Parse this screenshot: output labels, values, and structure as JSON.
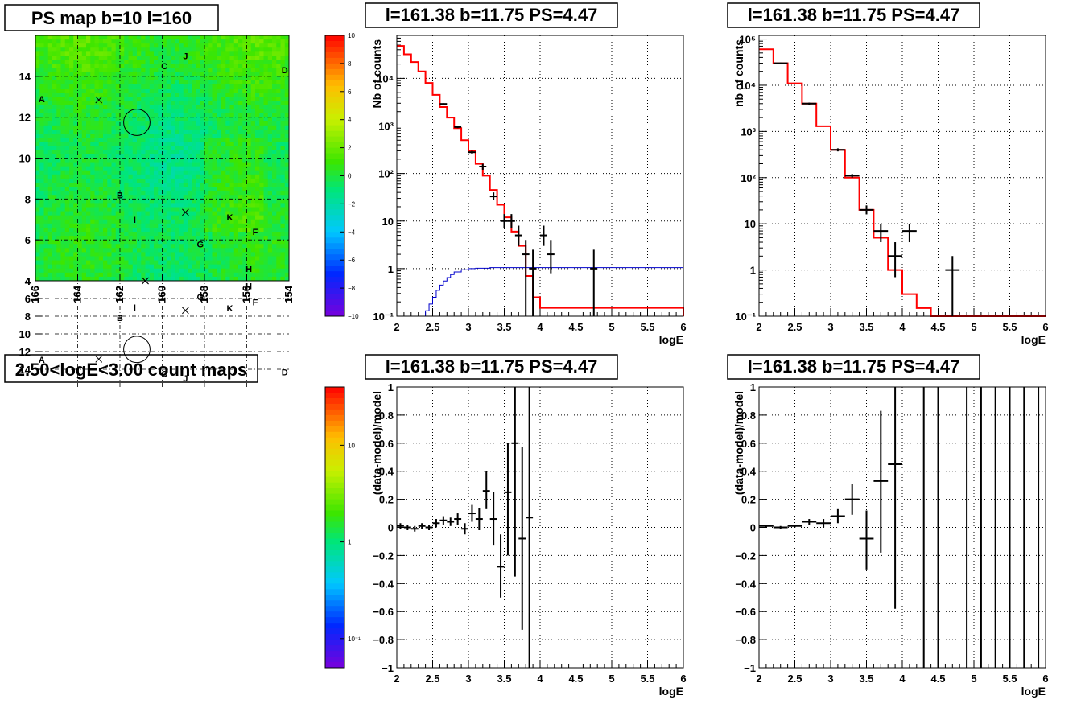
{
  "chart_data": [
    {
      "id": "psmap",
      "type": "heatmap",
      "title": "PS map b=10 l=160",
      "xlim": [
        166,
        154
      ],
      "ylim": [
        4,
        16
      ],
      "xticks": [
        "166",
        "164",
        "162",
        "160",
        "158",
        "156",
        "154"
      ],
      "yticks": [
        "4",
        "6",
        "8",
        "10",
        "12",
        "14"
      ],
      "grid": true,
      "colorbar": {
        "scale": "linear",
        "min": -10,
        "max": 10,
        "ticks": [
          "10",
          "8",
          "6",
          "4",
          "2",
          "0",
          "−2",
          "−4",
          "−6",
          "−8",
          "−10"
        ]
      },
      "dominant_value_range": [
        -2,
        3
      ],
      "sources": [
        {
          "name": "A",
          "x": 165.7,
          "y": 12.9
        },
        {
          "name": "B",
          "x": 162.0,
          "y": 8.2
        },
        {
          "name": "C",
          "x": 159.9,
          "y": 14.5
        },
        {
          "name": "D",
          "x": 154.2,
          "y": 14.3
        },
        {
          "name": "F",
          "x": 155.6,
          "y": 6.4
        },
        {
          "name": "G",
          "x": 158.2,
          "y": 5.8
        },
        {
          "name": "H",
          "x": 155.9,
          "y": 4.6
        },
        {
          "name": "I",
          "x": 161.3,
          "y": 7.0
        },
        {
          "name": "J",
          "x": 158.9,
          "y": 15.0
        },
        {
          "name": "K",
          "x": 156.8,
          "y": 7.1
        }
      ],
      "crosses": [
        {
          "x": 163.0,
          "y": 12.85
        },
        {
          "x": 158.9,
          "y": 7.35
        },
        {
          "x": 160.8,
          "y": 4.0
        }
      ],
      "circle": {
        "x": 161.2,
        "y": 11.75,
        "r": 0.5
      }
    },
    {
      "id": "countmap",
      "type": "heatmap",
      "title": "2.50<logE<3.00 count maps",
      "xlim": [
        166,
        154
      ],
      "ylim": [
        4,
        16
      ],
      "xticks": [
        "166",
        "164",
        "162",
        "160",
        "158",
        "156",
        "154"
      ],
      "yticks": [
        "4",
        "6",
        "8",
        "10",
        "12",
        "14"
      ],
      "grid": true,
      "colorbar": {
        "scale": "log",
        "min": 0.05,
        "max": 40,
        "ticks": [
          "10",
          "1",
          "10⁻¹"
        ]
      },
      "sources": [
        {
          "name": "A",
          "x": 165.7,
          "y": 12.9
        },
        {
          "name": "B",
          "x": 162.0,
          "y": 8.2
        },
        {
          "name": "C",
          "x": 159.9,
          "y": 14.5
        },
        {
          "name": "D",
          "x": 154.2,
          "y": 14.3
        },
        {
          "name": "F",
          "x": 155.6,
          "y": 6.4
        },
        {
          "name": "G",
          "x": 158.2,
          "y": 5.8
        },
        {
          "name": "H",
          "x": 155.9,
          "y": 4.6
        },
        {
          "name": "I",
          "x": 161.3,
          "y": 7.0
        },
        {
          "name": "J",
          "x": 158.9,
          "y": 15.0
        },
        {
          "name": "K",
          "x": 156.8,
          "y": 7.1
        }
      ],
      "crosses": [
        {
          "x": 163.0,
          "y": 12.85
        },
        {
          "x": 158.9,
          "y": 7.35
        },
        {
          "x": 160.8,
          "y": 4.0
        }
      ],
      "circle": {
        "x": 161.2,
        "y": 11.75,
        "r": 0.5
      }
    },
    {
      "id": "spec1",
      "type": "line",
      "title": "l=161.38 b=11.75 PS=4.47",
      "xlabel": "logE",
      "ylabel": "Nb of counts",
      "xlim": [
        2,
        6
      ],
      "ylim": [
        0.1,
        80000
      ],
      "yscale": "log",
      "grid": true,
      "xticks": [
        "2",
        "2.5",
        "3",
        "3.5",
        "4",
        "4.5",
        "5",
        "5.5",
        "6"
      ],
      "yticks": [
        {
          "v": 0.1,
          "t": "10⁻¹"
        },
        {
          "v": 1,
          "t": "1"
        },
        {
          "v": 10,
          "t": "10"
        },
        {
          "v": 100,
          "t": "10²"
        },
        {
          "v": 1000,
          "t": "10³"
        },
        {
          "v": 10000,
          "t": "10⁴"
        }
      ],
      "series": [
        {
          "kind": "step",
          "color": "#ff0000",
          "edges": [
            2.0,
            2.1,
            2.2,
            2.3,
            2.4,
            2.5,
            2.6,
            2.7,
            2.8,
            2.9,
            3.0,
            3.1,
            3.2,
            3.3,
            3.4,
            3.5,
            3.6,
            3.7,
            3.8,
            3.9,
            4.0,
            6.0
          ],
          "values": [
            48000,
            32000,
            22000,
            14000,
            8000,
            4500,
            2500,
            1500,
            900,
            500,
            300,
            160,
            90,
            45,
            22,
            12,
            6,
            3,
            0.7,
            0.25,
            0.15,
            0.1
          ]
        },
        {
          "kind": "step",
          "color": "#0000cc",
          "edges": [
            2.0,
            2.4,
            2.45,
            2.5,
            2.55,
            2.6,
            2.65,
            2.7,
            2.75,
            2.8,
            2.9,
            3.0,
            3.1,
            3.3,
            3.6,
            6.0
          ],
          "values": [
            0.1,
            0.13,
            0.18,
            0.25,
            0.35,
            0.45,
            0.55,
            0.65,
            0.75,
            0.85,
            0.95,
            1.0,
            1.02,
            1.05,
            1.05,
            1.05
          ]
        },
        {
          "kind": "errorbars",
          "color": "#000000",
          "points": [
            {
              "x": 2.65,
              "y": 2900,
              "lo": 2800,
              "hi": 3000,
              "xe": 0.05
            },
            {
              "x": 2.85,
              "y": 950,
              "lo": 900,
              "hi": 1000,
              "xe": 0.05
            },
            {
              "x": 3.05,
              "y": 280,
              "lo": 260,
              "hi": 300,
              "xe": 0.05
            },
            {
              "x": 3.2,
              "y": 140,
              "lo": 120,
              "hi": 160,
              "xe": 0.05
            },
            {
              "x": 3.35,
              "y": 33,
              "lo": 28,
              "hi": 40,
              "xe": 0.05
            },
            {
              "x": 3.5,
              "y": 10,
              "lo": 7,
              "hi": 14,
              "xe": 0.05
            },
            {
              "x": 3.6,
              "y": 10,
              "lo": 7,
              "hi": 14,
              "xe": 0.05
            },
            {
              "x": 3.7,
              "y": 5,
              "lo": 3,
              "hi": 8,
              "xe": 0.05
            },
            {
              "x": 3.8,
              "y": 2,
              "lo": 0.1,
              "hi": 4,
              "xe": 0.05
            },
            {
              "x": 3.9,
              "y": 1,
              "lo": 0.1,
              "hi": 2.5,
              "xe": 0.05
            },
            {
              "x": 4.05,
              "y": 5,
              "lo": 3,
              "hi": 8,
              "xe": 0.05
            },
            {
              "x": 4.15,
              "y": 2,
              "lo": 0.8,
              "hi": 4,
              "xe": 0.05
            },
            {
              "x": 4.75,
              "y": 1,
              "lo": 0.1,
              "hi": 2.5,
              "xe": 0.05
            }
          ]
        }
      ]
    },
    {
      "id": "spec2",
      "type": "line",
      "title": "l=161.38 b=11.75 PS=4.47",
      "xlabel": "logE",
      "ylabel": "nb of counts",
      "xlim": [
        2,
        6
      ],
      "ylim": [
        0.1,
        120000
      ],
      "yscale": "log",
      "grid": true,
      "xticks": [
        "2",
        "2.5",
        "3",
        "3.5",
        "4",
        "4.5",
        "5",
        "5.5",
        "6"
      ],
      "yticks": [
        {
          "v": 0.1,
          "t": "10⁻¹"
        },
        {
          "v": 1,
          "t": "1"
        },
        {
          "v": 10,
          "t": "10"
        },
        {
          "v": 100,
          "t": "10²"
        },
        {
          "v": 1000,
          "t": "10³"
        },
        {
          "v": 10000,
          "t": "10⁴"
        },
        {
          "v": 100000,
          "t": "10⁵"
        }
      ],
      "series": [
        {
          "kind": "step",
          "color": "#ff0000",
          "edges": [
            2.0,
            2.2,
            2.4,
            2.6,
            2.8,
            3.0,
            3.2,
            3.4,
            3.6,
            3.8,
            4.0,
            4.2,
            4.4,
            6.0
          ],
          "values": [
            60000,
            30000,
            11000,
            4000,
            1300,
            400,
            100,
            20,
            5,
            1,
            0.3,
            0.15,
            0.1,
            0.1
          ]
        },
        {
          "kind": "errorbars",
          "color": "#000000",
          "points": [
            {
              "x": 2.3,
              "y": 30000,
              "lo": 29000,
              "hi": 31000,
              "xe": 0.1
            },
            {
              "x": 2.7,
              "y": 4000,
              "lo": 3800,
              "hi": 4200,
              "xe": 0.1
            },
            {
              "x": 3.1,
              "y": 400,
              "lo": 370,
              "hi": 430,
              "xe": 0.1
            },
            {
              "x": 3.3,
              "y": 110,
              "lo": 100,
              "hi": 120,
              "xe": 0.1
            },
            {
              "x": 3.5,
              "y": 20,
              "lo": 16,
              "hi": 25,
              "xe": 0.1
            },
            {
              "x": 3.7,
              "y": 7,
              "lo": 4,
              "hi": 10,
              "xe": 0.1
            },
            {
              "x": 3.9,
              "y": 2,
              "lo": 0.7,
              "hi": 4,
              "xe": 0.1
            },
            {
              "x": 4.1,
              "y": 7,
              "lo": 4,
              "hi": 10,
              "xe": 0.1
            },
            {
              "x": 4.7,
              "y": 1,
              "lo": 0.1,
              "hi": 2,
              "xe": 0.1
            }
          ]
        }
      ]
    },
    {
      "id": "res1",
      "type": "scatter",
      "title": "l=161.38 b=11.75 PS=4.47",
      "xlabel": "logE",
      "ylabel": "(data-model)/model",
      "xlim": [
        2,
        6
      ],
      "ylim": [
        -1,
        1
      ],
      "grid": true,
      "xticks": [
        "2",
        "2.5",
        "3",
        "3.5",
        "4",
        "4.5",
        "5",
        "5.5",
        "6"
      ],
      "yticks": [
        {
          "v": -1,
          "t": "−1"
        },
        {
          "v": -0.8,
          "t": "−0.8"
        },
        {
          "v": -0.6,
          "t": "−0.6"
        },
        {
          "v": -0.4,
          "t": "−0.4"
        },
        {
          "v": -0.2,
          "t": "−0.2"
        },
        {
          "v": 0,
          "t": "0"
        },
        {
          "v": 0.2,
          "t": "0.2"
        },
        {
          "v": 0.4,
          "t": "0.4"
        },
        {
          "v": 0.6,
          "t": "0.6"
        },
        {
          "v": 0.8,
          "t": "0.8"
        },
        {
          "v": 1,
          "t": "1"
        }
      ],
      "series": [
        {
          "kind": "errorbars",
          "color": "#000000",
          "points": [
            {
              "x": 2.05,
              "y": 0.01,
              "lo": -0.01,
              "hi": 0.03,
              "xe": 0.05
            },
            {
              "x": 2.15,
              "y": 0.0,
              "lo": -0.02,
              "hi": 0.02,
              "xe": 0.05
            },
            {
              "x": 2.25,
              "y": -0.01,
              "lo": -0.03,
              "hi": 0.01,
              "xe": 0.05
            },
            {
              "x": 2.35,
              "y": 0.01,
              "lo": -0.01,
              "hi": 0.03,
              "xe": 0.05
            },
            {
              "x": 2.45,
              "y": 0.0,
              "lo": -0.02,
              "hi": 0.02,
              "xe": 0.05
            },
            {
              "x": 2.55,
              "y": 0.03,
              "lo": 0.0,
              "hi": 0.06,
              "xe": 0.05
            },
            {
              "x": 2.65,
              "y": 0.05,
              "lo": 0.02,
              "hi": 0.08,
              "xe": 0.05
            },
            {
              "x": 2.75,
              "y": 0.04,
              "lo": 0.01,
              "hi": 0.07,
              "xe": 0.05
            },
            {
              "x": 2.85,
              "y": 0.06,
              "lo": 0.02,
              "hi": 0.1,
              "xe": 0.05
            },
            {
              "x": 2.95,
              "y": -0.01,
              "lo": -0.05,
              "hi": 0.03,
              "xe": 0.05
            },
            {
              "x": 3.05,
              "y": 0.1,
              "lo": 0.04,
              "hi": 0.16,
              "xe": 0.05
            },
            {
              "x": 3.15,
              "y": 0.06,
              "lo": -0.02,
              "hi": 0.14,
              "xe": 0.05
            },
            {
              "x": 3.25,
              "y": 0.26,
              "lo": 0.13,
              "hi": 0.4,
              "xe": 0.05
            },
            {
              "x": 3.35,
              "y": 0.06,
              "lo": -0.13,
              "hi": 0.25,
              "xe": 0.05
            },
            {
              "x": 3.45,
              "y": -0.28,
              "lo": -0.5,
              "hi": -0.05,
              "xe": 0.05
            },
            {
              "x": 3.55,
              "y": 0.25,
              "lo": -0.2,
              "hi": 0.6,
              "xe": 0.05
            },
            {
              "x": 3.65,
              "y": 0.6,
              "lo": -0.35,
              "hi": 1.0,
              "xe": 0.05
            },
            {
              "x": 3.75,
              "y": -0.08,
              "lo": -0.73,
              "hi": 0.57,
              "xe": 0.05
            },
            {
              "x": 3.85,
              "y": 0.07,
              "lo": -1.0,
              "hi": 1.0,
              "xe": 0.05
            }
          ]
        }
      ]
    },
    {
      "id": "res2",
      "type": "scatter",
      "title": "l=161.38 b=11.75 PS=4.47",
      "xlabel": "logE",
      "ylabel": "(data-model)/model",
      "xlim": [
        2,
        6
      ],
      "ylim": [
        -1,
        1
      ],
      "grid": true,
      "xticks": [
        "2",
        "2.5",
        "3",
        "3.5",
        "4",
        "4.5",
        "5",
        "5.5",
        "6"
      ],
      "yticks": [
        {
          "v": -1,
          "t": "−1"
        },
        {
          "v": -0.8,
          "t": "−0.8"
        },
        {
          "v": -0.6,
          "t": "−0.6"
        },
        {
          "v": -0.4,
          "t": "−0.4"
        },
        {
          "v": -0.2,
          "t": "−0.2"
        },
        {
          "v": 0,
          "t": "0"
        },
        {
          "v": 0.2,
          "t": "0.2"
        },
        {
          "v": 0.4,
          "t": "0.4"
        },
        {
          "v": 0.6,
          "t": "0.6"
        },
        {
          "v": 0.8,
          "t": "0.8"
        },
        {
          "v": 1,
          "t": "1"
        }
      ],
      "series": [
        {
          "kind": "errorbars",
          "color": "#000000",
          "points": [
            {
              "x": 2.1,
              "y": 0.01,
              "lo": 0.0,
              "hi": 0.02,
              "xe": 0.1
            },
            {
              "x": 2.3,
              "y": 0.0,
              "lo": -0.01,
              "hi": 0.01,
              "xe": 0.1
            },
            {
              "x": 2.5,
              "y": 0.01,
              "lo": 0.0,
              "hi": 0.02,
              "xe": 0.1
            },
            {
              "x": 2.7,
              "y": 0.04,
              "lo": 0.02,
              "hi": 0.06,
              "xe": 0.1
            },
            {
              "x": 2.9,
              "y": 0.03,
              "lo": 0.0,
              "hi": 0.06,
              "xe": 0.1
            },
            {
              "x": 3.1,
              "y": 0.08,
              "lo": 0.03,
              "hi": 0.13,
              "xe": 0.1
            },
            {
              "x": 3.3,
              "y": 0.2,
              "lo": 0.09,
              "hi": 0.31,
              "xe": 0.1
            },
            {
              "x": 3.5,
              "y": -0.08,
              "lo": -0.3,
              "hi": 0.12,
              "xe": 0.1
            },
            {
              "x": 3.7,
              "y": 0.33,
              "lo": -0.18,
              "hi": 0.83,
              "xe": 0.1
            },
            {
              "x": 3.9,
              "y": 0.45,
              "lo": -0.58,
              "hi": 1.0,
              "xe": 0.1
            },
            {
              "x": 4.3,
              "y": 1.0,
              "lo": -1.0,
              "hi": 1.0,
              "xe": 0.0
            },
            {
              "x": 4.5,
              "y": 1.0,
              "lo": -1.0,
              "hi": 1.0,
              "xe": 0.0
            },
            {
              "x": 4.9,
              "y": 1.0,
              "lo": -1.0,
              "hi": 1.0,
              "xe": 0.0
            },
            {
              "x": 5.1,
              "y": 1.0,
              "lo": -1.0,
              "hi": 1.0,
              "xe": 0.0
            },
            {
              "x": 5.3,
              "y": 1.0,
              "lo": -1.0,
              "hi": 1.0,
              "xe": 0.0
            },
            {
              "x": 5.5,
              "y": 1.0,
              "lo": -1.0,
              "hi": 1.0,
              "xe": 0.0
            },
            {
              "x": 5.7,
              "y": 1.0,
              "lo": -1.0,
              "hi": 1.0,
              "xe": 0.0
            },
            {
              "x": 5.9,
              "y": 1.0,
              "lo": -1.0,
              "hi": 1.0,
              "xe": 0.0
            }
          ]
        }
      ]
    }
  ]
}
